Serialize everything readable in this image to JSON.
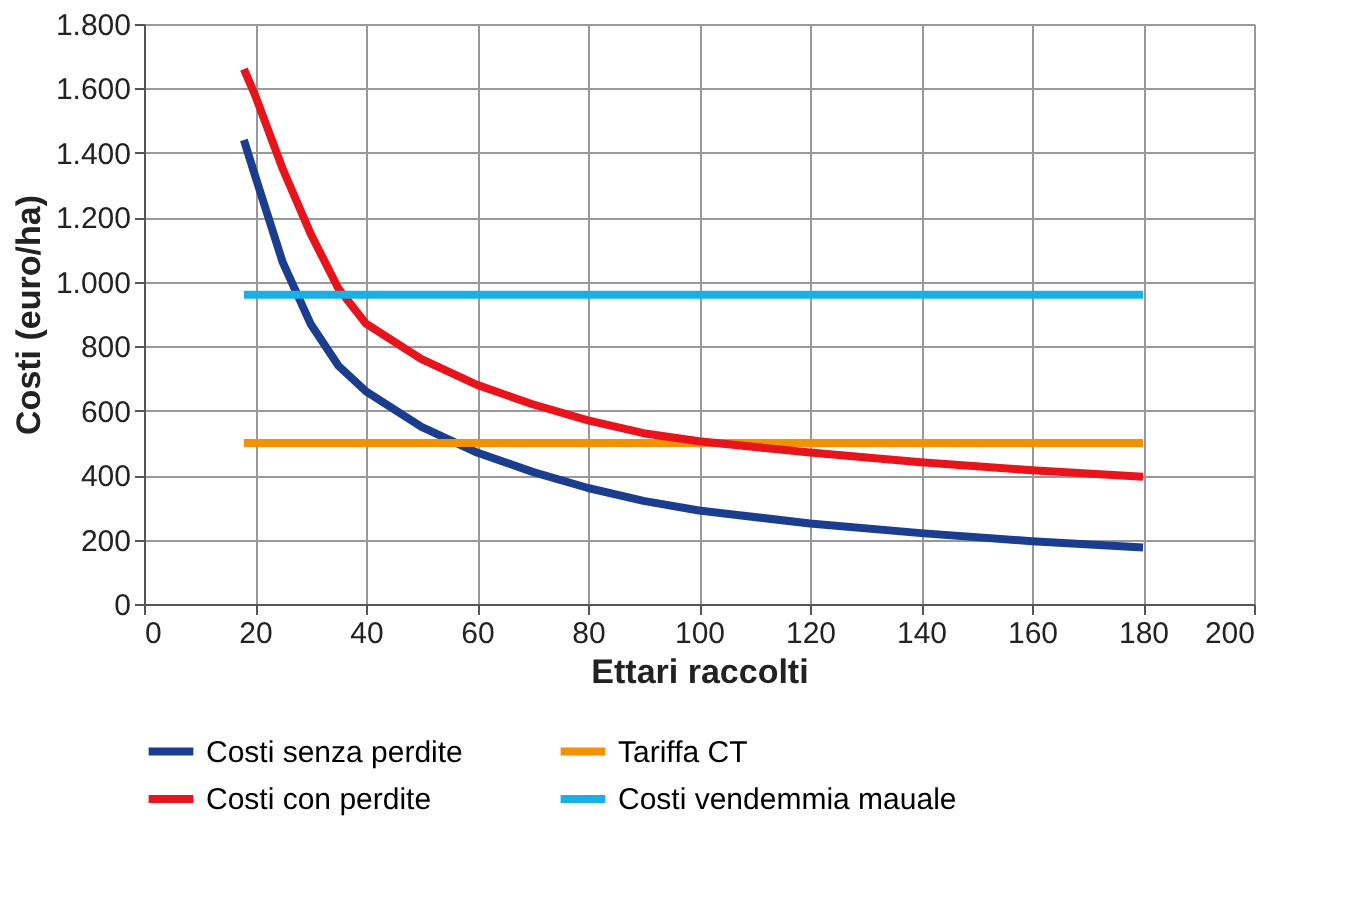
{
  "chart_data": {
    "type": "line",
    "xlabel": "Ettari raccolti",
    "ylabel": "Costi (euro/ha)",
    "xlim": [
      0,
      200
    ],
    "xticks": [
      0,
      20,
      40,
      60,
      80,
      100,
      120,
      140,
      160,
      180,
      200
    ],
    "ylim": [
      0,
      1800
    ],
    "yticks": [
      0,
      200,
      400,
      600,
      800,
      {
        "value": 1000,
        "label": "1.000"
      },
      {
        "value": 1200,
        "label": "1.200"
      },
      {
        "value": 1400,
        "label": "1.400"
      },
      {
        "value": 1600,
        "label": "1.600"
      },
      {
        "value": 1800,
        "label": "1.800"
      }
    ],
    "grid": true,
    "legend": "bottom",
    "marker": "none",
    "line_style": "solid",
    "series": [
      {
        "name": "Costi senza perdite",
        "color": "#1a3d8f",
        "x": [
          18,
          20,
          25,
          30,
          35,
          40,
          50,
          60,
          70,
          80,
          90,
          100,
          120,
          140,
          160,
          180
        ],
        "values": [
          1440,
          1330,
          1060,
          870,
          740,
          660,
          550,
          470,
          410,
          360,
          320,
          290,
          250,
          220,
          195,
          175
        ]
      },
      {
        "name": "Tariffa CT",
        "color": "#f39200",
        "x": [
          18,
          180
        ],
        "values": [
          500,
          500
        ]
      },
      {
        "name": "Costi con perdite",
        "color": "#e8141b",
        "x": [
          18,
          20,
          25,
          30,
          35,
          40,
          50,
          60,
          70,
          80,
          90,
          100,
          120,
          140,
          160,
          180
        ],
        "values": [
          1660,
          1580,
          1350,
          1150,
          980,
          870,
          760,
          680,
          620,
          570,
          530,
          505,
          470,
          440,
          415,
          395
        ]
      },
      {
        "name": "Costi vendemmia mauale",
        "color": "#1ab0e6",
        "x": [
          18,
          180
        ],
        "values": [
          960,
          960
        ]
      }
    ]
  }
}
